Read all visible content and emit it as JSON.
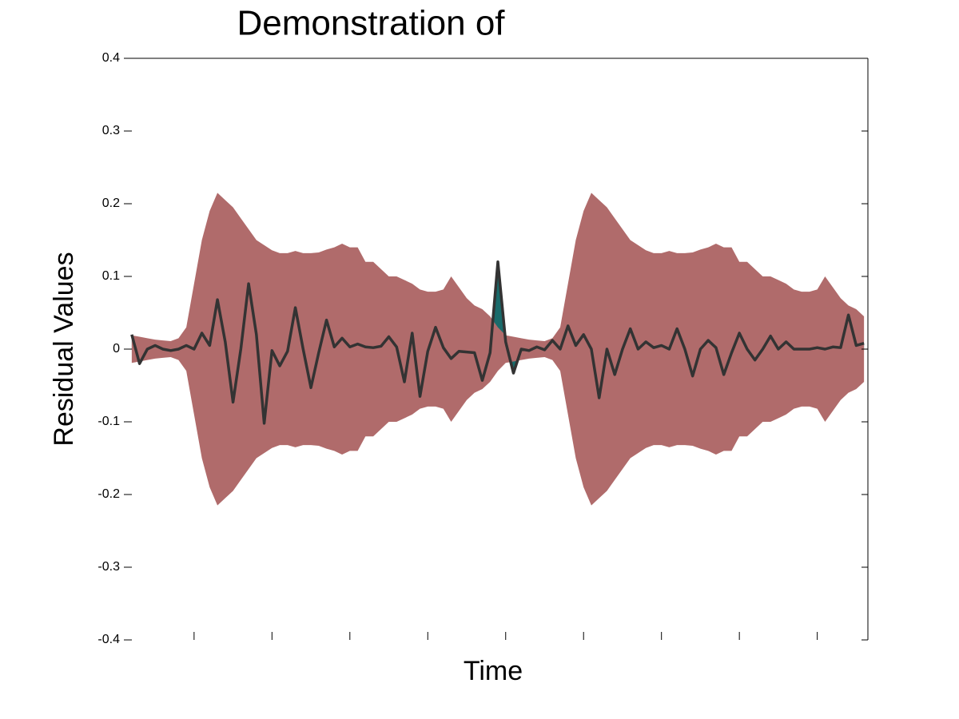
{
  "chart_data": {
    "type": "band-line",
    "title": "Demonstration of",
    "xlabel": "Time",
    "ylabel": "Residual Values",
    "xlim": [
      1.5,
      96.5
    ],
    "xticks": [
      10,
      20,
      30,
      40,
      50,
      60,
      70,
      80,
      90
    ],
    "ylim": [
      -0.4,
      0.4
    ],
    "yticks": [
      -0.4,
      -0.3,
      -0.2,
      -0.1,
      0,
      0.1,
      0.2,
      0.3,
      0.4
    ],
    "x": [
      2,
      3,
      4,
      5,
      6,
      7,
      8,
      9,
      10,
      11,
      12,
      13,
      14,
      15,
      16,
      17,
      18,
      19,
      20,
      21,
      22,
      23,
      24,
      25,
      26,
      27,
      28,
      29,
      30,
      31,
      32,
      33,
      34,
      35,
      36,
      37,
      38,
      39,
      40,
      41,
      42,
      43,
      44,
      45,
      46,
      47,
      48,
      49,
      50,
      51,
      52,
      53,
      54,
      55,
      56,
      57,
      58,
      59,
      60,
      61,
      62,
      63,
      64,
      65,
      66,
      67,
      68,
      69,
      70,
      71,
      72,
      73,
      74,
      75,
      76,
      77,
      78,
      79,
      80,
      81,
      82,
      83,
      84,
      85,
      86,
      87,
      88,
      89,
      90,
      91,
      92,
      93,
      94,
      95,
      96
    ],
    "values": [
      0.02,
      -0.02,
      0,
      0.005,
      0,
      -0.002,
      0,
      0.005,
      0,
      0.022,
      0.005,
      0.068,
      0.01,
      -0.073,
      0,
      0.09,
      0.02,
      -0.102,
      -0.002,
      -0.023,
      -0.003,
      0.057,
      0,
      -0.053,
      -0.005,
      0.04,
      0.003,
      0.015,
      0.003,
      0.007,
      0.003,
      0.002,
      0.004,
      0.017,
      0.003,
      -0.045,
      0.022,
      -0.065,
      -0.003,
      0.03,
      0.002,
      -0.013,
      -0.003,
      -0.004,
      -0.005,
      -0.043,
      -0.005,
      0.12,
      0.01,
      -0.033,
      0,
      -0.002,
      0.003,
      -0.001,
      0.012,
      0,
      0.032,
      0.005,
      0.02,
      0,
      -0.067,
      0,
      -0.035,
      0,
      0.028,
      0,
      0.01,
      0.002,
      0.005,
      0,
      0.028,
      0,
      -0.037,
      0,
      0.012,
      0.002,
      -0.035,
      -0.005,
      0.022,
      0,
      -0.015,
      0,
      0.018,
      0,
      0.01,
      0,
      0,
      0,
      0.002,
      0,
      0.003,
      0.002,
      0.047,
      0.005,
      0.008
    ],
    "upper": [
      0.019,
      0.017,
      0.015,
      0.013,
      0.012,
      0.011,
      0.015,
      0.03,
      0.09,
      0.15,
      0.19,
      0.215,
      0.205,
      0.195,
      0.18,
      0.165,
      0.15,
      0.143,
      0.136,
      0.132,
      0.132,
      0.135,
      0.132,
      0.132,
      0.133,
      0.137,
      0.14,
      0.145,
      0.14,
      0.14,
      0.12,
      0.12,
      0.11,
      0.1,
      0.1,
      0.095,
      0.09,
      0.082,
      0.079,
      0.079,
      0.082,
      0.1,
      0.085,
      0.07,
      0.06,
      0.055,
      0.045,
      0.03,
      0.019,
      0.017,
      0.015,
      0.013,
      0.012,
      0.011,
      0.015,
      0.03,
      0.09,
      0.15,
      0.19,
      0.215,
      0.205,
      0.195,
      0.18,
      0.165,
      0.15,
      0.143,
      0.136,
      0.132,
      0.132,
      0.135,
      0.132,
      0.132,
      0.133,
      0.137,
      0.14,
      0.145,
      0.14,
      0.14,
      0.12,
      0.12,
      0.11,
      0.1,
      0.1,
      0.095,
      0.09,
      0.082,
      0.079,
      0.079,
      0.082,
      0.1,
      0.085,
      0.07,
      0.06,
      0.055,
      0.045
    ],
    "lower": [
      -0.019,
      -0.017,
      -0.015,
      -0.013,
      -0.012,
      -0.011,
      -0.015,
      -0.03,
      -0.09,
      -0.15,
      -0.19,
      -0.215,
      -0.205,
      -0.195,
      -0.18,
      -0.165,
      -0.15,
      -0.143,
      -0.136,
      -0.132,
      -0.132,
      -0.135,
      -0.132,
      -0.132,
      -0.133,
      -0.137,
      -0.14,
      -0.145,
      -0.14,
      -0.14,
      -0.12,
      -0.12,
      -0.11,
      -0.1,
      -0.1,
      -0.095,
      -0.09,
      -0.082,
      -0.079,
      -0.079,
      -0.082,
      -0.1,
      -0.085,
      -0.07,
      -0.06,
      -0.055,
      -0.045,
      -0.03,
      -0.019,
      -0.017,
      -0.015,
      -0.013,
      -0.012,
      -0.011,
      -0.015,
      -0.03,
      -0.09,
      -0.15,
      -0.19,
      -0.215,
      -0.205,
      -0.195,
      -0.18,
      -0.165,
      -0.15,
      -0.143,
      -0.136,
      -0.132,
      -0.132,
      -0.135,
      -0.132,
      -0.132,
      -0.133,
      -0.137,
      -0.14,
      -0.145,
      -0.14,
      -0.14,
      -0.12,
      -0.12,
      -0.11,
      -0.1,
      -0.1,
      -0.095,
      -0.09,
      -0.082,
      -0.079,
      -0.079,
      -0.082,
      -0.1,
      -0.085,
      -0.07,
      -0.06,
      -0.055,
      -0.045
    ],
    "line_color": "#333333",
    "band_color": "#b06b6b",
    "exceed_color": "#1a6b6b"
  }
}
